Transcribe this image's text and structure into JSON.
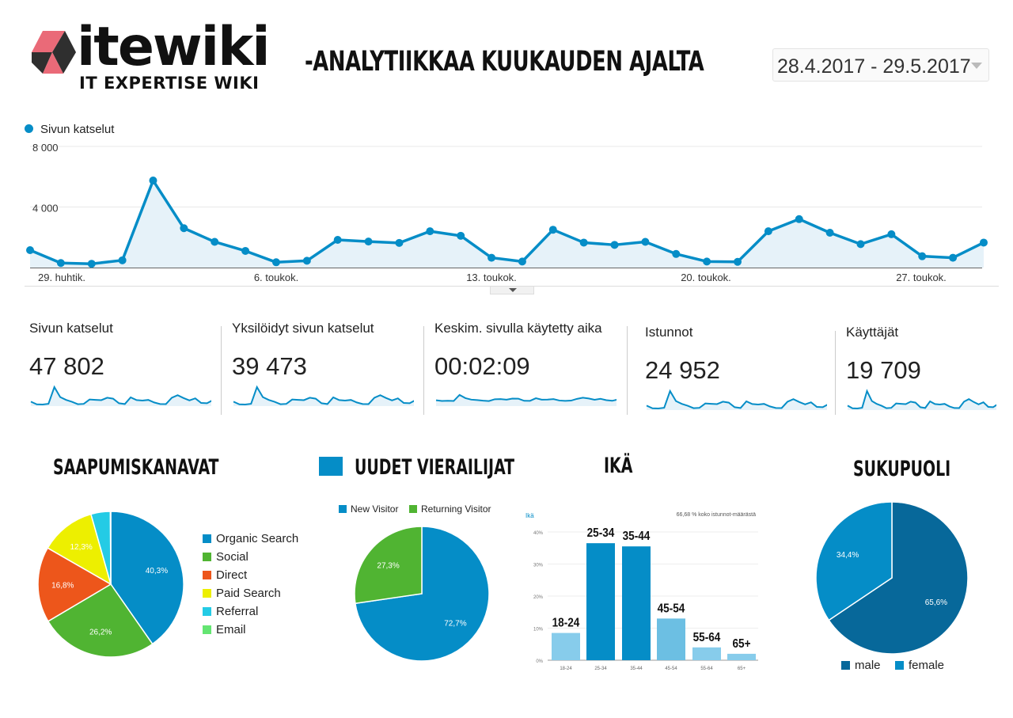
{
  "header": {
    "logo_word": "itewiki",
    "logo_sub": "IT EXPERTISE WIKI",
    "title": "-ANALYTIIKKAA KUUKAUDEN AJALTA",
    "date_range": "28.4.2017 - 29.5.2017"
  },
  "colors": {
    "primary": "#058dc7",
    "green": "#50b432",
    "orange": "#ed561b",
    "yellow": "#edef00",
    "cyan": "#24cbe5",
    "lightgreen": "#64e572",
    "dark": "#07689a",
    "light": "#87cceb"
  },
  "main_chart": {
    "legend": "Sivun katselut",
    "y_ticks": [
      "8 000",
      "4 000"
    ],
    "x_ticks": [
      "29. huhtik.",
      "6. toukok.",
      "13. toukok.",
      "20. toukok.",
      "27. toukok."
    ]
  },
  "metrics": [
    {
      "label": "Sivun katselut",
      "value": "47 802"
    },
    {
      "label": "Yksilöidyt sivun katselut",
      "value": "39 473"
    },
    {
      "label": "Keskim. sivulla käytetty aika",
      "value": "00:02:09"
    },
    {
      "label": "Istunnot",
      "value": "24 952"
    },
    {
      "label": "Käyttäjät",
      "value": "19 709"
    }
  ],
  "sections": {
    "channels_title": "SAAPUMISKANAVAT",
    "visitors_title": "UUDET VIERAILIJAT",
    "age_title": "IKÄ",
    "gender_title": "SUKUPUOLI"
  },
  "channels_legend": [
    "Organic Search",
    "Social",
    "Direct",
    "Paid Search",
    "Referral",
    "Email"
  ],
  "visitors_legend": [
    "New Visitor",
    "Returning Visitor"
  ],
  "age_chart_meta": {
    "corner_label": "Ikä",
    "note": "66,68 % koko istunnot-määrästä",
    "y_ticks": [
      "40%",
      "30%",
      "20%",
      "10%",
      "0%"
    ],
    "overlay_labels": [
      "18-24",
      "25-34",
      "35-44",
      "45-54",
      "55-64",
      "65+"
    ]
  },
  "gender_legend": [
    "male",
    "female"
  ],
  "chart_data": [
    {
      "type": "line",
      "title": "",
      "series": [
        {
          "name": "Sivun katselut",
          "values": [
            1150,
            300,
            250,
            480,
            5750,
            2600,
            1700,
            1100,
            350,
            450,
            1830,
            1720,
            1630,
            2400,
            2100,
            650,
            400,
            2500,
            1650,
            1500,
            1700,
            900,
            400,
            380,
            2400,
            3200,
            2300,
            1550,
            2200,
            750,
            650,
            1650
          ]
        }
      ],
      "x_label_ticks": [
        "29. huhtik.",
        "6. toukok.",
        "13. toukok.",
        "20. toukok.",
        "27. toukok."
      ],
      "ylim": [
        0,
        8000
      ]
    },
    {
      "type": "pie",
      "title": "SAAPUMISKANAVAT",
      "categories": [
        "Organic Search",
        "Social",
        "Direct",
        "Paid Search",
        "Referral",
        "Email"
      ],
      "values": [
        40.3,
        26.2,
        16.8,
        12.3,
        4.3,
        0.1
      ],
      "labels": [
        "40,3%",
        "26,2%",
        "16,8%",
        "12,3%",
        "",
        ""
      ]
    },
    {
      "type": "pie",
      "title": "UUDET VIERAILIJAT",
      "categories": [
        "New Visitor",
        "Returning Visitor"
      ],
      "values": [
        72.7,
        27.3
      ],
      "labels": [
        "72,7%",
        "27,3%"
      ]
    },
    {
      "type": "bar",
      "title": "IKÄ",
      "categories": [
        "18-24",
        "25-34",
        "35-44",
        "45-54",
        "55-64",
        "65+"
      ],
      "values": [
        8.5,
        36.5,
        35.5,
        13,
        4,
        2
      ],
      "ylim": [
        0,
        40
      ]
    },
    {
      "type": "pie",
      "title": "SUKUPUOLI",
      "categories": [
        "male",
        "female"
      ],
      "values": [
        65.6,
        34.4
      ],
      "labels": [
        "65,6%",
        "34,4%"
      ]
    }
  ]
}
